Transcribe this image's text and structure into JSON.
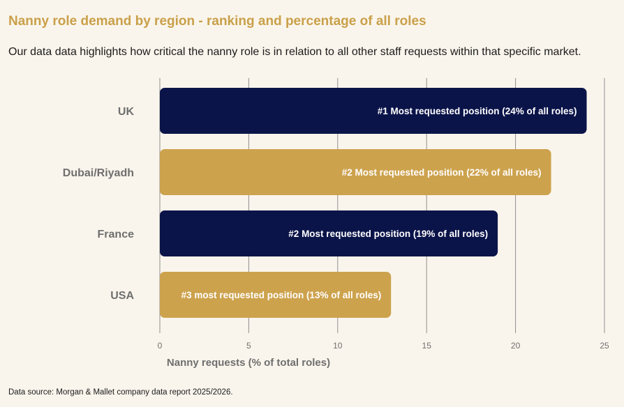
{
  "title": "Nanny role demand by region - ranking and percentage of all roles",
  "subtitle": "Our data data highlights how critical the nanny role is in relation to all other staff requests within that specific market.",
  "source": "Data source: Morgan & Mallet company data report 2025/2026.",
  "colors": {
    "navy": "#0b1449",
    "gold": "#cda24d",
    "grid": "#8f8f8f"
  },
  "chart_data": {
    "type": "bar",
    "orientation": "horizontal",
    "categories": [
      "UK",
      "Dubai/Riyadh",
      "France",
      "USA"
    ],
    "values": [
      24,
      22,
      19,
      13
    ],
    "bar_colors": [
      "#0b1449",
      "#cda24d",
      "#0b1449",
      "#cda24d"
    ],
    "data_labels": [
      "#1 Most requested position (24% of all roles)",
      "#2 Most requested position (22% of all roles)",
      "#2 Most requested position (19% of all roles)",
      "#3 most requested position (13% of all roles)"
    ],
    "xlabel": "Nanny requests (% of total roles)",
    "ylabel": "",
    "xlim": [
      0,
      25
    ],
    "xticks": [
      0,
      5,
      10,
      15,
      20,
      25
    ],
    "grid": "vertical"
  }
}
